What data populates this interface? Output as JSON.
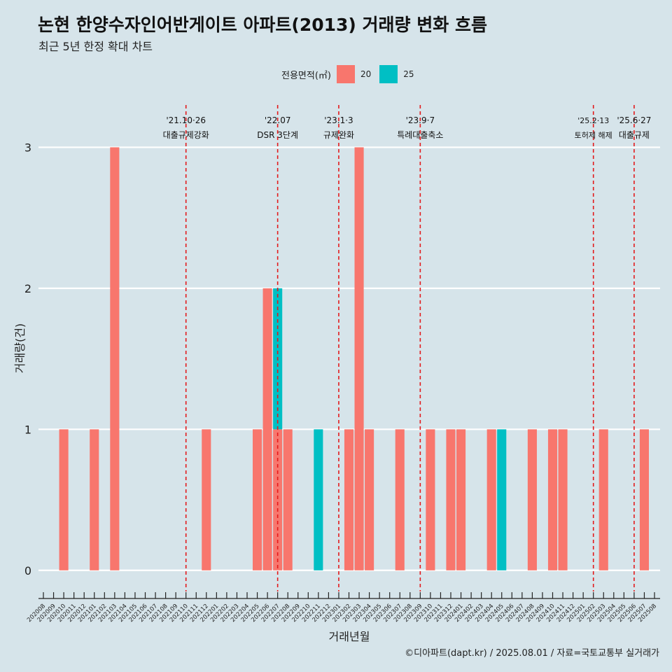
{
  "chart_data": {
    "type": "bar",
    "title": "논현 한양수자인어반게이트 아파트(2013) 거래량 변화 흐름",
    "subtitle": "최근 5년 한정 확대 차트",
    "xlabel": "거래년월",
    "ylabel": "거래량(건)",
    "ylim": [
      -0.15,
      3.3
    ],
    "yticks": [
      0,
      1,
      2,
      3
    ],
    "legend": {
      "title": "전용면적(㎡)",
      "position": "top"
    },
    "categories": [
      "202008",
      "202009",
      "202010",
      "202011",
      "202012",
      "202101",
      "202102",
      "202103",
      "202104",
      "202105",
      "202106",
      "202107",
      "202108",
      "202109",
      "202110",
      "202111",
      "202112",
      "202201",
      "202202",
      "202203",
      "202204",
      "202205",
      "202206",
      "202207",
      "202208",
      "202209",
      "202210",
      "202211",
      "202212",
      "202301",
      "202302",
      "202303",
      "202304",
      "202305",
      "202306",
      "202307",
      "202308",
      "202309",
      "202310",
      "202311",
      "202312",
      "202401",
      "202402",
      "202403",
      "202404",
      "202405",
      "202406",
      "202407",
      "202408",
      "202409",
      "202410",
      "202411",
      "202412",
      "202501",
      "202502",
      "202503",
      "202504",
      "202505",
      "202506",
      "202507",
      "202508"
    ],
    "series": [
      {
        "name": "20",
        "color": "#f8766d",
        "values": [
          0,
          0,
          1,
          0,
          0,
          1,
          0,
          3,
          0,
          0,
          0,
          0,
          0,
          0,
          0,
          0,
          1,
          0,
          0,
          0,
          0,
          1,
          2,
          1,
          1,
          0,
          0,
          0,
          0,
          0,
          1,
          3,
          1,
          0,
          0,
          1,
          0,
          0,
          1,
          0,
          1,
          1,
          0,
          0,
          1,
          0,
          0,
          0,
          1,
          0,
          1,
          1,
          0,
          0,
          0,
          1,
          0,
          0,
          0,
          1,
          0
        ]
      },
      {
        "name": "25",
        "color": "#00bfc4",
        "values": [
          0,
          0,
          0,
          0,
          0,
          0,
          0,
          0,
          0,
          0,
          0,
          0,
          0,
          0,
          0,
          0,
          0,
          0,
          0,
          0,
          0,
          0,
          0,
          1,
          0,
          0,
          0,
          1,
          0,
          0,
          0,
          0,
          0,
          0,
          0,
          0,
          0,
          0,
          0,
          0,
          0,
          0,
          0,
          0,
          0,
          1,
          0,
          0,
          0,
          0,
          0,
          0,
          0,
          0,
          0,
          0,
          0,
          0,
          0,
          0,
          0
        ]
      }
    ],
    "annotations": [
      {
        "date": "'21.10·26",
        "label": "대출규제강화",
        "x": "202110",
        "offset": 0.0
      },
      {
        "date": "'22.07",
        "label": "DSR 3단계",
        "x": "202207",
        "offset": 0.0
      },
      {
        "date": "'23.1·3",
        "label": "규제완화",
        "x": "202301",
        "offset": 0.0
      },
      {
        "date": "'23.9·7",
        "label": "특례대출축소",
        "x": "202309",
        "offset": 0.0
      },
      {
        "date": "'25.2·13",
        "label": "토허제 해제",
        "x": "202502",
        "offset": 0.0
      },
      {
        "date": "'25.6·27",
        "label": "대출규제",
        "x": "202506",
        "offset": 0.0
      }
    ]
  },
  "caption": "©디아파트(dapt.kr) / 2025.08.01 / 자료=국토교통부 실거래가"
}
